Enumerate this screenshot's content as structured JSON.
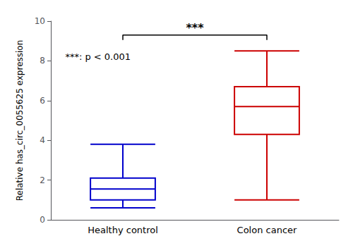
{
  "chart_data": {
    "type": "box",
    "categories": [
      "Healthy control",
      "Colon cancer"
    ],
    "boxes": [
      {
        "whisker_low": 0.6,
        "q1": 1.0,
        "median": 1.55,
        "q3": 2.1,
        "whisker_high": 3.8,
        "color": "#0000CC"
      },
      {
        "whisker_low": 1.0,
        "q1": 4.3,
        "median": 5.7,
        "q3": 6.7,
        "whisker_high": 8.5,
        "color": "#CC0000"
      }
    ],
    "ylabel": "Relative has_circ_0055625 expression",
    "ylim": [
      0,
      10
    ],
    "yticks": [
      0,
      2,
      4,
      6,
      8,
      10
    ],
    "grid": false,
    "bracket": {
      "y": 9.3,
      "y_end": 9.05,
      "text": "***"
    },
    "annotation": "***: p < 0.001"
  }
}
